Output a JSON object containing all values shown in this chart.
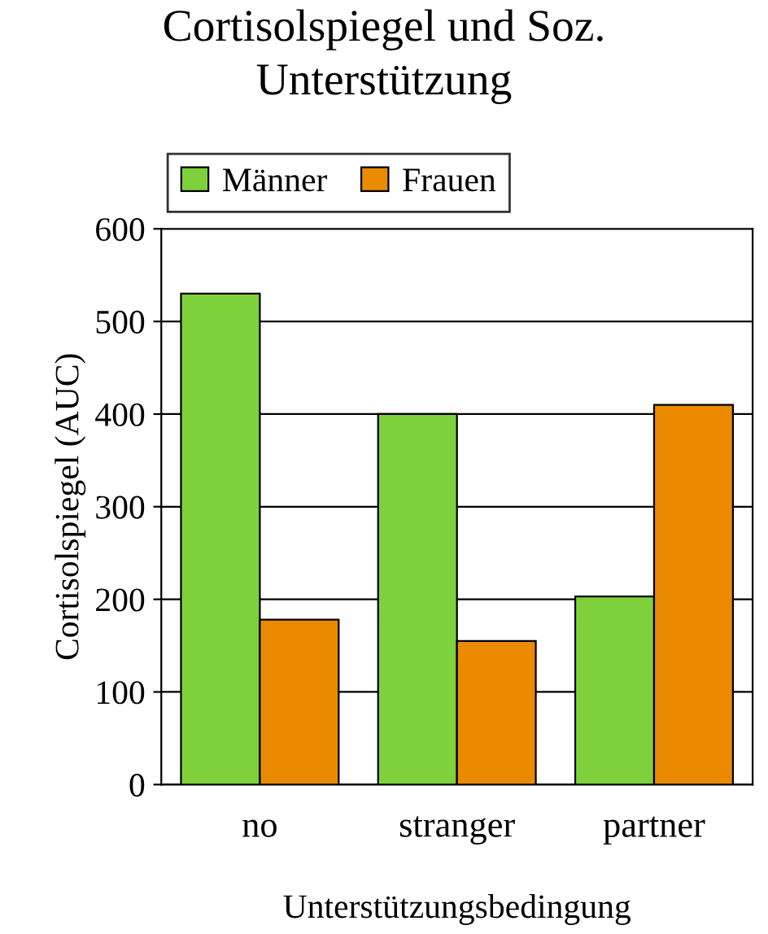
{
  "chart_data": {
    "type": "bar",
    "title": "Cortisolspiegel und Soz.\nUnterstützung",
    "xlabel": "Unterstützungsbedingung",
    "ylabel": "Cortisolspiegel (AUC)",
    "categories": [
      "no",
      "stranger",
      "partner"
    ],
    "series": [
      {
        "name": "Männer",
        "color": "#7fd13b",
        "values": [
          530,
          400,
          203
        ]
      },
      {
        "name": "Frauen",
        "color": "#e98a00",
        "values": [
          178,
          155,
          410
        ]
      }
    ],
    "ylim": [
      0,
      600
    ],
    "yticks": [
      0,
      100,
      200,
      300,
      400,
      500,
      600
    ],
    "grid": "y",
    "legend": "top"
  }
}
